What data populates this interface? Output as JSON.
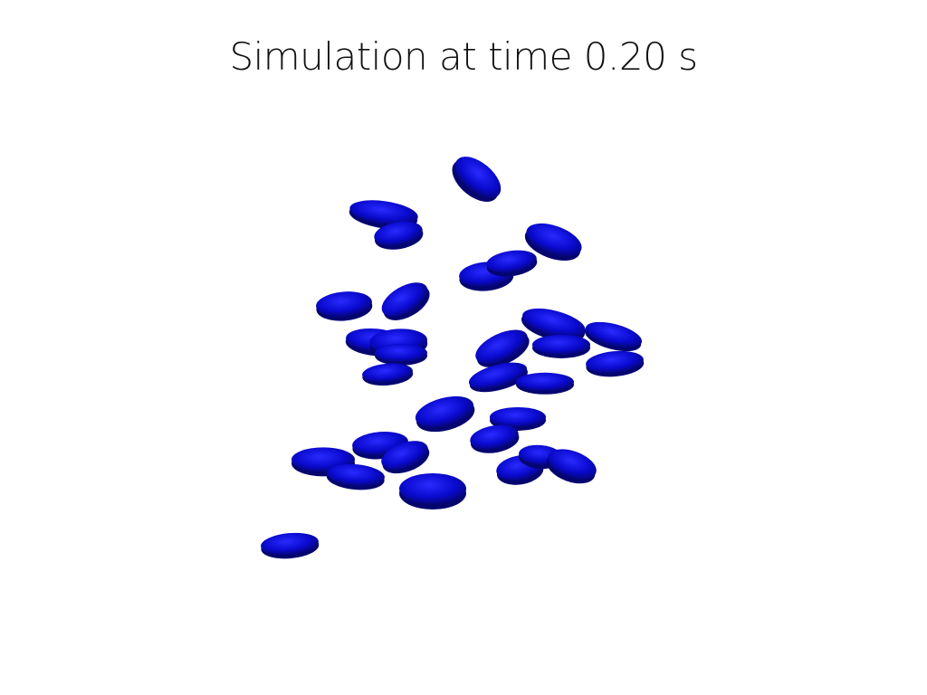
{
  "title": "Simulation at time 0.20 s",
  "particle_color": "#0a0acf",
  "particle_shade": "#050570",
  "particle_highlight": "#2a2aff"
}
